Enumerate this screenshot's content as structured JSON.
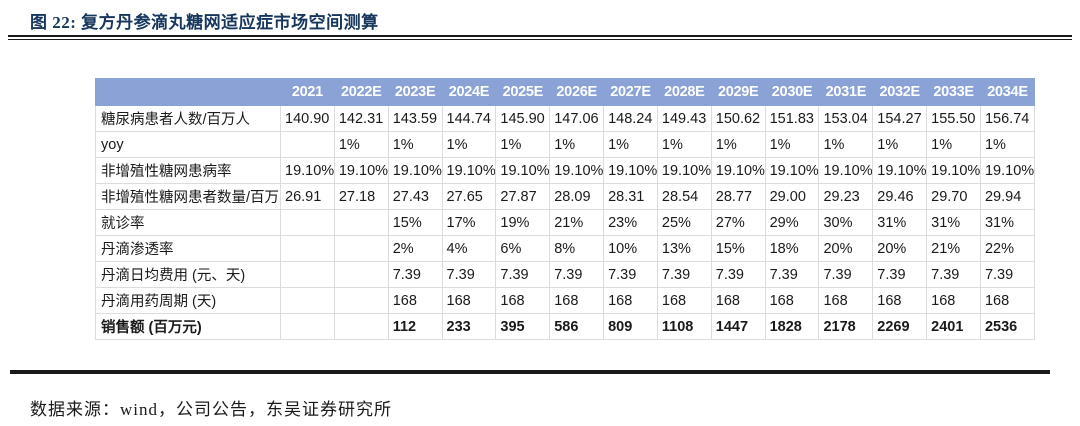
{
  "figure": {
    "title": "图 22:  复方丹参滴丸糖网适应症市场空间测算"
  },
  "colors": {
    "title": "#17365d",
    "header_bg": "#8aa2d6",
    "rule": "#1a1a1a"
  },
  "table": {
    "label_header": "",
    "year_headers": [
      "2021",
      "2022E",
      "2023E",
      "2024E",
      "2025E",
      "2026E",
      "2027E",
      "2028E",
      "2029E",
      "2030E",
      "2031E",
      "2032E",
      "2033E",
      "2034E"
    ],
    "rows": [
      {
        "label": "糖尿病患者人数/百万人",
        "bold": false,
        "values": [
          "140.90",
          "142.31",
          "143.59",
          "144.74",
          "145.90",
          "147.06",
          "148.24",
          "149.43",
          "150.62",
          "151.83",
          "153.04",
          "154.27",
          "155.50",
          "156.74"
        ]
      },
      {
        "label": "yoy",
        "bold": false,
        "values": [
          "",
          "1%",
          "1%",
          "1%",
          "1%",
          "1%",
          "1%",
          "1%",
          "1%",
          "1%",
          "1%",
          "1%",
          "1%",
          "1%"
        ]
      },
      {
        "label": "非增殖性糖网患病率",
        "bold": false,
        "values": [
          "19.10%",
          "19.10%",
          "19.10%",
          "19.10%",
          "19.10%",
          "19.10%",
          "19.10%",
          "19.10%",
          "19.10%",
          "19.10%",
          "19.10%",
          "19.10%",
          "19.10%",
          "19.10%"
        ]
      },
      {
        "label": "非增殖性糖网患者数量/百万人",
        "bold": false,
        "values": [
          "26.91",
          "27.18",
          "27.43",
          "27.65",
          "27.87",
          "28.09",
          "28.31",
          "28.54",
          "28.77",
          "29.00",
          "29.23",
          "29.46",
          "29.70",
          "29.94"
        ]
      },
      {
        "label": "就诊率",
        "bold": false,
        "values": [
          "",
          "",
          "15%",
          "17%",
          "19%",
          "21%",
          "23%",
          "25%",
          "27%",
          "29%",
          "30%",
          "31%",
          "31%",
          "31%"
        ]
      },
      {
        "label": "丹滴渗透率",
        "bold": false,
        "values": [
          "",
          "",
          "2%",
          "4%",
          "6%",
          "8%",
          "10%",
          "13%",
          "15%",
          "18%",
          "20%",
          "20%",
          "21%",
          "22%"
        ]
      },
      {
        "label": "丹滴日均费用 (元、天)",
        "bold": false,
        "values": [
          "",
          "",
          "7.39",
          "7.39",
          "7.39",
          "7.39",
          "7.39",
          "7.39",
          "7.39",
          "7.39",
          "7.39",
          "7.39",
          "7.39",
          "7.39"
        ]
      },
      {
        "label": "丹滴用药周期 (天)",
        "bold": false,
        "values": [
          "",
          "",
          "168",
          "168",
          "168",
          "168",
          "168",
          "168",
          "168",
          "168",
          "168",
          "168",
          "168",
          "168"
        ]
      },
      {
        "label": "销售额 (百万元)",
        "bold": true,
        "values": [
          "",
          "",
          "112",
          "233",
          "395",
          "586",
          "809",
          "1108",
          "1447",
          "1828",
          "2178",
          "2269",
          "2401",
          "2536"
        ]
      }
    ]
  },
  "footer": {
    "source": "数据来源：wind，公司公告，东吴证券研究所"
  }
}
